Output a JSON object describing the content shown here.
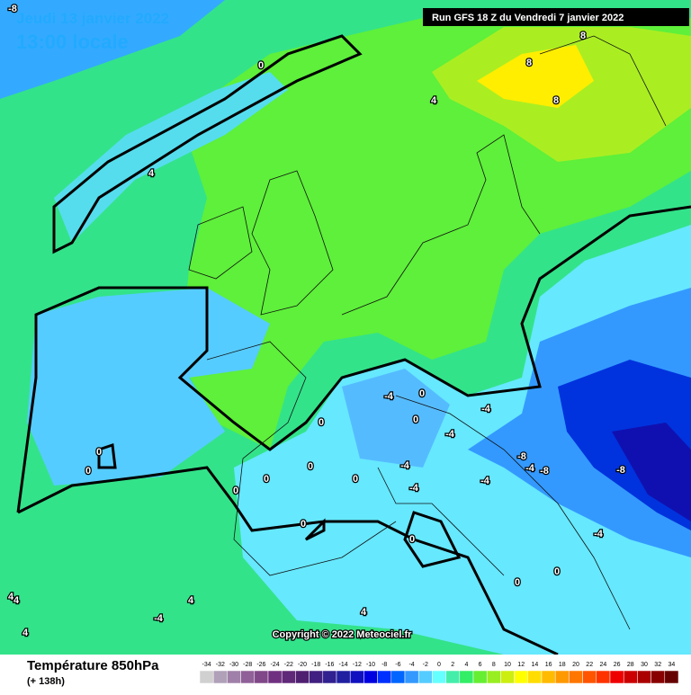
{
  "header": {
    "date": "Jeudi 13 janvier 2022",
    "time": "13:00 locale",
    "run": "Run GFS 18 Z du Vendredi 7 janvier 2022"
  },
  "map": {
    "copyright": "Copyright © 2022 Meteociel.fr",
    "contour_labels": [
      "-8",
      "0",
      "4",
      "4",
      "0",
      "0",
      "-4",
      "0",
      "0",
      "0",
      "0",
      "0",
      "0",
      "0",
      "0",
      "-4",
      "-4",
      "-4",
      "-8",
      "-8",
      "-4",
      "-4",
      "-4",
      "-4",
      "0",
      "0",
      "0",
      "4",
      "4",
      "4",
      "-4",
      "4",
      "8",
      "8",
      "8",
      "-8",
      "4"
    ]
  },
  "legend": {
    "title": "Température 850hPa",
    "subtitle": "(+ 138h)",
    "ticks": [
      -34,
      -32,
      -30,
      -28,
      -26,
      -24,
      -22,
      -20,
      -18,
      -16,
      -14,
      -12,
      -10,
      -8,
      -6,
      -4,
      -2,
      0,
      2,
      4,
      6,
      8,
      10,
      12,
      14,
      16,
      18,
      20,
      22,
      24,
      26,
      28,
      30,
      32,
      34
    ],
    "colors": [
      "#d0d0d0",
      "#b0a0b8",
      "#a080a8",
      "#906098",
      "#804888",
      "#703080",
      "#602878",
      "#502070",
      "#402080",
      "#302090",
      "#2020a0",
      "#1010c0",
      "#0000e0",
      "#0030ff",
      "#0066ff",
      "#3399ff",
      "#55ccff",
      "#66ffff",
      "#44eeaa",
      "#33ee66",
      "#66ee33",
      "#99ee22",
      "#ccee11",
      "#ffff00",
      "#ffdd00",
      "#ffbb00",
      "#ff9900",
      "#ff7700",
      "#ff5500",
      "#ff3300",
      "#ee0000",
      "#cc0000",
      "#aa0000",
      "#880000",
      "#660000"
    ]
  }
}
